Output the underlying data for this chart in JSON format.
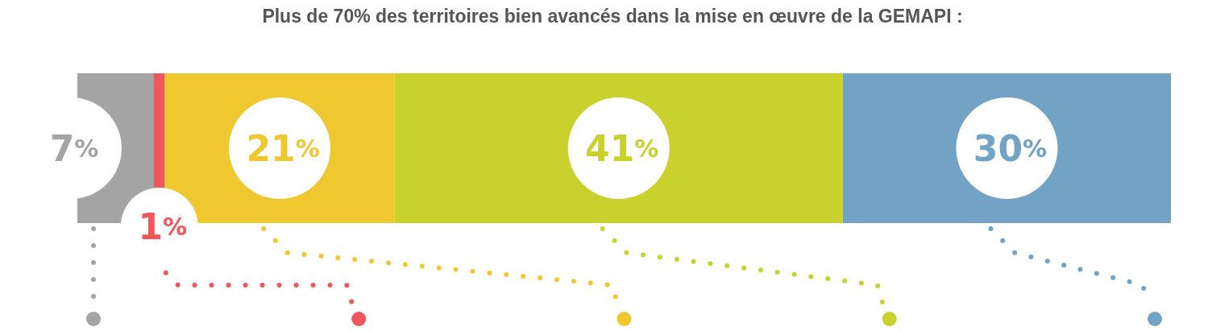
{
  "chart_data": {
    "type": "bar",
    "orientation": "horizontal",
    "stacked": true,
    "title": "Plus de 70% des territoires bien avancés dans la mise en œuvre de la GEMAPI :",
    "categories": [
      null
    ],
    "xlim": [
      0,
      100
    ],
    "series": [
      {
        "color": "#a5a4a5",
        "values": [
          7
        ],
        "value_labels": [
          "7%"
        ]
      },
      {
        "color": "#f0575d",
        "values": [
          1
        ],
        "value_labels": [
          "1%"
        ]
      },
      {
        "color": "#efc72f",
        "values": [
          21
        ],
        "value_labels": [
          "21%"
        ]
      },
      {
        "color": "#c9d22d",
        "values": [
          41
        ],
        "value_labels": [
          "41%"
        ]
      },
      {
        "color": "#72a3c4",
        "values": [
          30
        ],
        "value_labels": [
          "30%"
        ]
      }
    ]
  }
}
